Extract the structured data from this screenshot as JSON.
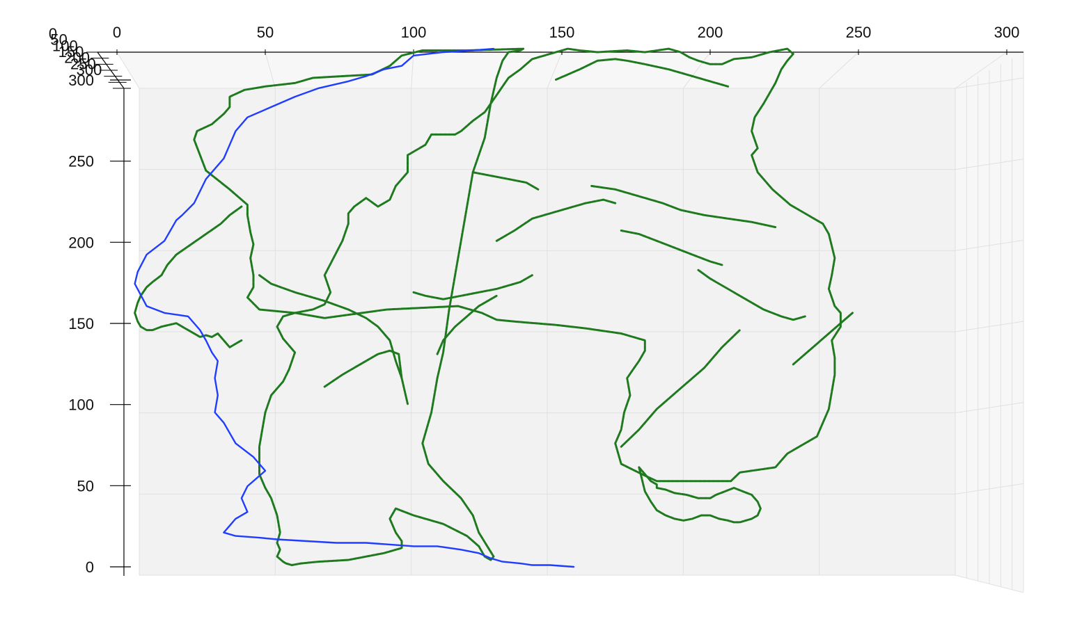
{
  "chart_data": {
    "type": "line",
    "projection": "3d",
    "title": "",
    "axes": {
      "x": {
        "label": "",
        "range": [
          0,
          300
        ],
        "ticks": [
          0,
          50,
          100,
          150,
          200,
          250,
          300
        ],
        "tick_labels": [
          "0",
          "50",
          "100",
          "150",
          "200",
          "250",
          "300"
        ]
      },
      "y": {
        "label": "",
        "range": [
          0,
          300
        ],
        "ticks": [
          0,
          50,
          100,
          150,
          200,
          250,
          300
        ],
        "tick_labels": [
          "0",
          "50",
          "100",
          "150",
          "200",
          "250",
          "300"
        ]
      },
      "z": {
        "label": "",
        "range": [
          0,
          300
        ],
        "ticks": [
          0,
          50,
          100,
          150,
          200,
          250,
          300
        ],
        "tick_labels": [
          "0",
          "50",
          "100",
          "150",
          "200",
          "250",
          "300"
        ]
      }
    },
    "grid": true,
    "legend": "none",
    "colors": {
      "pane": "#f2f2f2",
      "grid": "#e0e0e0",
      "outline": "#1f7a1f",
      "silhouette": "#1f3cff"
    },
    "series": [
      {
        "color": "#1f7a1f",
        "segments": [
          {
            "x": [
              137,
              118,
              103,
              96,
              92,
              86,
              66,
              60,
              50,
              43,
              38,
              38,
              38,
              36,
              32,
              27,
              26,
              28,
              30,
              38,
              44,
              44,
              45,
              46,
              45,
              46,
              46,
              44,
              48,
              60,
              70,
              91,
              115,
              123,
              128,
              134,
              148,
              158,
              170,
              178,
              178,
              176,
              174,
              172,
              173,
              172,
              171,
              170,
              168,
              170,
              177,
              182,
              192,
              207,
              210,
              222,
              226,
              236,
              240,
              242,
              242,
              241,
              244,
              244,
              242,
              240,
              241,
              242,
              240,
              238,
              234,
              227,
              221,
              216,
              214,
              216,
              214,
              215,
              218,
              222,
              224,
              226,
              228,
              226,
              220,
              214,
              208,
              204,
              200,
              196,
              193,
              190,
              186,
              178,
              172,
              162,
              156,
              152,
              140,
              136,
              132,
              130,
              128,
              126,
              124,
              120,
              116,
              114,
              106,
              104,
              98,
              98,
              94,
              92,
              88,
              84,
              80,
              78,
              78,
              76,
              73,
              70,
              72,
              70,
              66,
              60,
              56,
              54,
              56,
              60,
              58,
              56,
              52,
              50,
              49,
              48,
              48,
              48,
              50,
              52,
              54,
              55,
              54,
              55,
              54,
              56,
              57,
              59,
              62,
              68,
              78,
              84,
              90,
              96,
              96,
              94,
              92,
              94,
              100,
              110,
              118,
              122,
              124,
              126,
              127,
              122,
              120,
              116,
              110,
              105,
              103,
              106,
              108,
              110,
              112,
              114,
              116,
              118,
              120,
              124,
              126,
              128,
              130,
              132,
              136,
              137
            ],
            "y": [
              302,
              301,
              301,
              298,
              292,
              287,
              285,
              282,
              280,
              278,
              274,
              270,
              268,
              264,
              258,
              254,
              249,
              240,
              231,
              220,
              211,
              205,
              195,
              188,
              180,
              170,
              163,
              157,
              150,
              148,
              145,
              150,
              152,
              148,
              144,
              143,
              141,
              139,
              136,
              132,
              126,
              120,
              115,
              110,
              100,
              95,
              90,
              80,
              72,
              60,
              54,
              50,
              50,
              50,
              55,
              58,
              66,
              76,
              92,
              112,
              122,
              132,
              140,
              148,
              152,
              162,
              170,
              180,
              194,
              200,
              204,
              211,
              220,
              230,
              240,
              244,
              254,
              262,
              270,
              282,
              290,
              295,
              299,
              302,
              300,
              297,
              296,
              293,
              293,
              295,
              297,
              300,
              302,
              300,
              301,
              300,
              301,
              302,
              296,
              290,
              285,
              280,
              275,
              270,
              265,
              260,
              254,
              252,
              252,
              246,
              240,
              230,
              222,
              214,
              210,
              215,
              210,
              206,
              200,
              190,
              180,
              170,
              160,
              153,
              150,
              148,
              146,
              140,
              133,
              125,
              115,
              108,
              100,
              90,
              80,
              70,
              62,
              54,
              46,
              40,
              30,
              20,
              14,
              10,
              6,
              3,
              2,
              1,
              2,
              3,
              4,
              6,
              8,
              11,
              15,
              20,
              28,
              34,
              30,
              25,
              18,
              12,
              6,
              4,
              6,
              20,
              30,
              40,
              50,
              60,
              72,
              90,
              110,
              125,
              150,
              170,
              190,
              210,
              230,
              250,
              270,
              285,
              295,
              300,
              301,
              302
            ]
          },
          {
            "x": [
              176,
              178,
              180,
              182,
              182,
              185,
              188,
              192,
              196,
              200,
              202,
              205,
              208,
              211,
              214,
              216,
              217,
              216,
              214,
              212,
              210,
              208,
              206,
              203,
              200,
              197,
              194,
              191,
              188,
              185,
              182,
              180,
              178,
              176
            ],
            "y": [
              58,
              54,
              50,
              48,
              46,
              45,
              43,
              42,
              40,
              40,
              42,
              44,
              46,
              44,
              42,
              38,
              34,
              30,
              28,
              27,
              26,
              26,
              27,
              28,
              30,
              30,
              28,
              27,
              28,
              30,
              33,
              38,
              44,
              58
            ]
          },
          {
            "x": [
              42,
              38,
              35,
              30,
              25,
              20,
              17,
              15,
              12,
              10,
              8,
              7,
              6,
              7,
              8,
              10,
              12,
              15,
              20,
              22,
              24,
              26,
              28,
              30,
              32,
              34,
              36,
              38,
              40,
              42
            ],
            "y": [
              210,
              205,
              200,
              194,
              188,
              182,
              176,
              170,
              166,
              163,
              158,
              154,
              148,
              143,
              140,
              138,
              138,
              140,
              142,
              140,
              138,
              136,
              134,
              135,
              134,
              136,
              132,
              128,
              130,
              132
            ]
          },
          {
            "x": [
              48,
              52,
              60,
              70,
              78,
              84,
              88,
              92,
              94,
              96,
              98
            ],
            "y": [
              170,
              165,
              160,
              155,
              150,
              145,
              140,
              132,
              120,
              110,
              95
            ]
          },
          {
            "x": [
              70,
              76,
              82,
              88,
              92,
              95,
              96
            ],
            "y": [
              105,
              112,
              118,
              124,
              126,
              124,
              110
            ]
          },
          {
            "x": [
              100,
              104,
              110,
              116,
              122,
              128,
              136,
              140
            ],
            "y": [
              160,
              158,
              156,
              158,
              160,
              162,
              166,
              170
            ]
          },
          {
            "x": [
              128,
              134,
              140,
              150,
              158,
              164,
              168
            ],
            "y": [
              190,
              196,
              203,
              208,
              212,
              214,
              212
            ]
          },
          {
            "x": [
              148,
              156,
              162,
              168,
              172,
              178,
              186,
              194,
              202,
              206
            ],
            "y": [
              284,
              290,
              295,
              296,
              295,
              293,
              290,
              286,
              282,
              280
            ]
          },
          {
            "x": [
              120,
              126,
              132,
              138,
              140,
              142
            ],
            "y": [
              230,
              228,
              226,
              224,
              222,
              220
            ]
          },
          {
            "x": [
              160,
              168,
              176,
              184,
              190,
              198,
              206,
              214,
              222
            ],
            "y": [
              222,
              220,
              216,
              212,
              208,
              205,
              203,
              201,
              198
            ]
          },
          {
            "x": [
              170,
              176,
              182,
              188,
              194,
              200,
              204
            ],
            "y": [
              196,
              194,
              190,
              186,
              182,
              178,
              176
            ]
          },
          {
            "x": [
              196,
              200,
              206,
              212,
              218,
              224,
              228,
              232
            ],
            "y": [
              173,
              168,
              162,
              156,
              150,
              146,
              144,
              146
            ]
          },
          {
            "x": [
              228,
              232,
              236,
              240,
              244,
              248
            ],
            "y": [
              118,
              124,
              130,
              136,
              142,
              148
            ]
          },
          {
            "x": [
              108,
              110,
              114,
              118,
              122,
              126,
              128
            ],
            "y": [
              124,
              132,
              140,
              146,
              152,
              156,
              158
            ]
          },
          {
            "x": [
              170,
              176,
              182,
              190,
              198,
              204,
              210
            ],
            "y": [
              70,
              80,
              92,
              104,
              116,
              128,
              138
            ]
          }
        ]
      },
      {
        "color": "#1f3cff",
        "segments": [
          {
            "x": [
              127,
              120,
              110,
              100,
              96,
              90,
              84,
              78,
              68,
              60,
              52,
              44,
              40,
              38,
              36,
              33,
              30,
              26,
              22,
              20,
              16,
              10,
              7,
              6,
              10,
              16,
              24,
              28,
              30,
              32,
              34,
              33,
              34,
              33,
              36,
              40,
              46,
              50,
              44,
              42,
              44,
              40,
              38,
              36,
              40,
              48,
              54,
              64,
              74,
              84,
              92,
              100,
              108,
              116,
              122,
              126,
              130,
              136,
              140,
              146,
              154
            ],
            "y": [
              302,
              301,
              300,
              298,
              292,
              290,
              286,
              283,
              279,
              274,
              268,
              262,
              254,
              246,
              238,
              232,
              226,
              212,
              205,
              202,
              190,
              182,
              172,
              165,
              152,
              148,
              146,
              138,
              132,
              125,
              120,
              110,
              100,
              90,
              84,
              72,
              64,
              56,
              47,
              40,
              32,
              28,
              24,
              20,
              18,
              17,
              16,
              15,
              14,
              14,
              13,
              12,
              12,
              10,
              8,
              5,
              3,
              2,
              1,
              1,
              0
            ]
          }
        ]
      }
    ]
  }
}
